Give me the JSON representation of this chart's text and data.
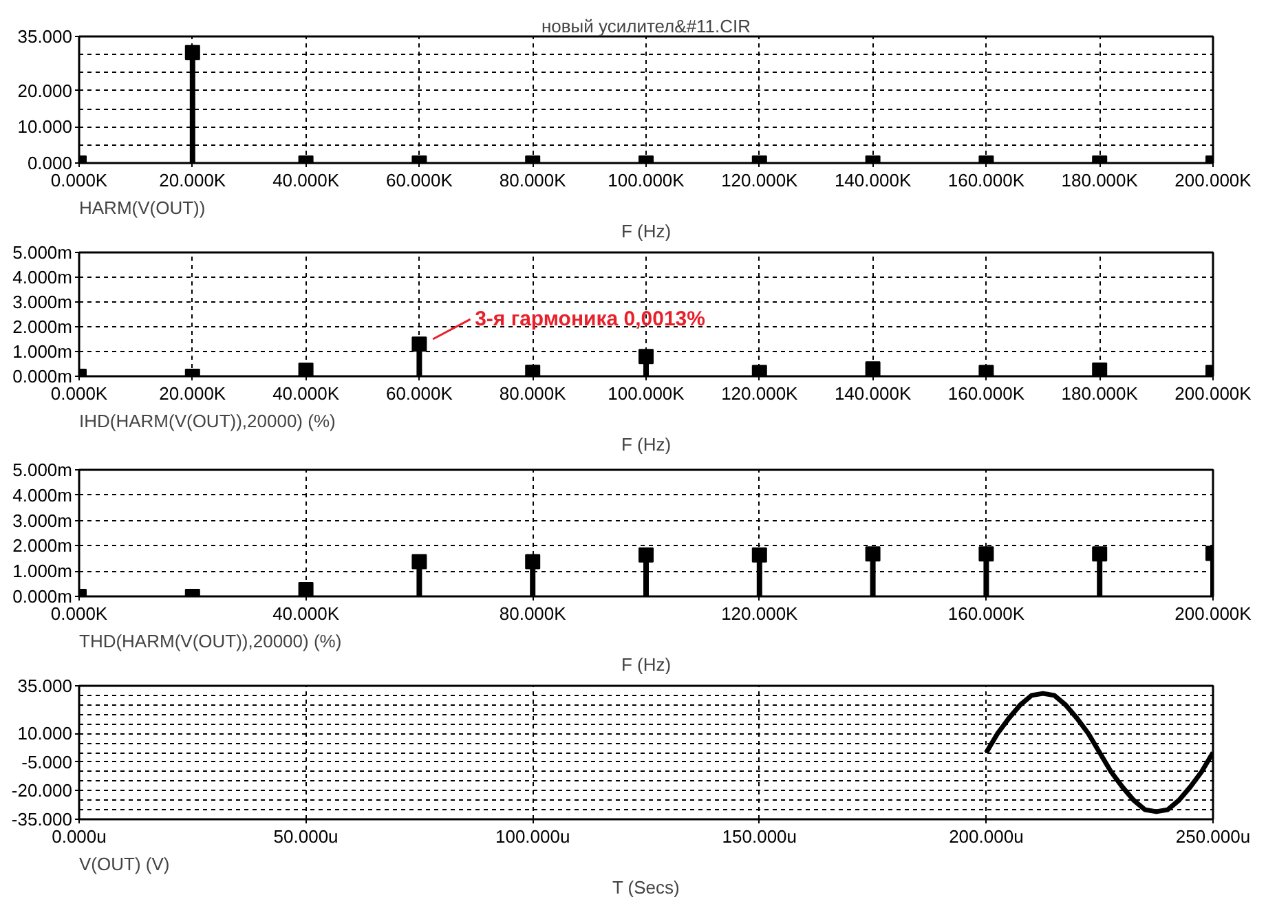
{
  "chart_data": [
    {
      "type": "lollipop",
      "title": "новый усилител&#11.CIR",
      "xlabel": "F (Hz)",
      "annotations": [
        "HARM(V(OUT))"
      ],
      "marker": "square",
      "grid": true,
      "x": [
        0,
        20,
        40,
        60,
        80,
        100,
        120,
        140,
        160,
        180,
        200
      ],
      "series": [
        {
          "color": "#000000",
          "values": [
            0,
            30.6,
            0,
            0,
            0,
            0,
            0,
            0,
            0,
            0,
            0
          ]
        }
      ],
      "xlim": [
        0,
        200
      ],
      "xticks": [
        {
          "value": 0,
          "label": "0.000K"
        },
        {
          "value": 20,
          "label": "20.000K"
        },
        {
          "value": 40,
          "label": "40.000K"
        },
        {
          "value": 60,
          "label": "60.000K"
        },
        {
          "value": 80,
          "label": "80.000K"
        },
        {
          "value": 100,
          "label": "100.000K"
        },
        {
          "value": 120,
          "label": "120.000K"
        },
        {
          "value": 140,
          "label": "140.000K"
        },
        {
          "value": 160,
          "label": "160.000K"
        },
        {
          "value": 180,
          "label": "180.000K"
        },
        {
          "value": 200,
          "label": "200.000K"
        }
      ],
      "ylim": [
        0,
        35
      ],
      "yticks": [
        {
          "value": 0,
          "label": "0.000"
        },
        {
          "value": 5,
          "label": null
        },
        {
          "value": 10,
          "label": "10.000"
        },
        {
          "value": 15,
          "label": null
        },
        {
          "value": 20,
          "label": "20.000"
        },
        {
          "value": 25,
          "label": null
        },
        {
          "value": 30,
          "label": null
        },
        {
          "value": 35,
          "label": "35.000"
        }
      ]
    },
    {
      "type": "lollipop",
      "xlabel": "F (Hz)",
      "marker": "square",
      "grid": true,
      "x": [
        0,
        20,
        40,
        60,
        80,
        100,
        120,
        140,
        160,
        180,
        200
      ],
      "series": [
        {
          "color": "#000000",
          "values": [
            0,
            0,
            0.24,
            1.3,
            0.16,
            0.8,
            0.15,
            0.3,
            0.15,
            0.25,
            0.15
          ]
        }
      ],
      "annotations": [
        {
          "text": "3-я гармоника 0,0013%",
          "x": 60,
          "y": 1.3
        },
        "IHD(HARM(V(OUT)),20000) (%)"
      ],
      "xlim": [
        0,
        200
      ],
      "xticks": [
        {
          "value": 0,
          "label": "0.000K"
        },
        {
          "value": 20,
          "label": "20.000K"
        },
        {
          "value": 40,
          "label": "40.000K"
        },
        {
          "value": 60,
          "label": "60.000K"
        },
        {
          "value": 80,
          "label": "80.000K"
        },
        {
          "value": 100,
          "label": "100.000K"
        },
        {
          "value": 120,
          "label": "120.000K"
        },
        {
          "value": 140,
          "label": "140.000K"
        },
        {
          "value": 160,
          "label": "160.000K"
        },
        {
          "value": 180,
          "label": "180.000K"
        },
        {
          "value": 200,
          "label": "200.000K"
        }
      ],
      "ylim": [
        0,
        5
      ],
      "yticks": [
        {
          "value": 0,
          "label": "0.000m"
        },
        {
          "value": 1,
          "label": "1.000m"
        },
        {
          "value": 2,
          "label": "2.000m"
        },
        {
          "value": 3,
          "label": "3.000m"
        },
        {
          "value": 4,
          "label": "4.000m"
        },
        {
          "value": 5,
          "label": "5.000m"
        }
      ]
    },
    {
      "type": "lollipop",
      "xlabel": "F (Hz)",
      "annotations": [
        "THD(HARM(V(OUT)),20000) (%)"
      ],
      "marker": "square",
      "grid": true,
      "x": [
        0,
        20,
        40,
        60,
        80,
        100,
        120,
        140,
        160,
        180,
        200
      ],
      "series": [
        {
          "color": "#000000",
          "values": [
            0,
            0,
            0.27,
            1.37,
            1.37,
            1.64,
            1.64,
            1.68,
            1.68,
            1.68,
            1.7
          ]
        }
      ],
      "xlim": [
        0,
        200
      ],
      "xticks": [
        {
          "value": 0,
          "label": "0.000K"
        },
        {
          "value": 40,
          "label": "40.000K"
        },
        {
          "value": 80,
          "label": "80.000K"
        },
        {
          "value": 120,
          "label": "120.000K"
        },
        {
          "value": 160,
          "label": "160.000K"
        },
        {
          "value": 200,
          "label": "200.000K"
        }
      ],
      "ylim": [
        0,
        5
      ],
      "yticks": [
        {
          "value": 0,
          "label": "0.000m"
        },
        {
          "value": 1,
          "label": "1.000m"
        },
        {
          "value": 2,
          "label": "2.000m"
        },
        {
          "value": 3,
          "label": "3.000m"
        },
        {
          "value": 4,
          "label": "4.000m"
        },
        {
          "value": 5,
          "label": "5.000m"
        }
      ]
    },
    {
      "type": "line",
      "xlabel": "T (Secs)",
      "annotations": [
        "V(OUT) (V)"
      ],
      "grid": true,
      "x": [
        200,
        202.5,
        205,
        207.5,
        210,
        212.5,
        215,
        217.5,
        220,
        222.5,
        225,
        227.5,
        230,
        232.5,
        235,
        237.5,
        240,
        242.5,
        245,
        247.5,
        250
      ],
      "series": [
        {
          "color": "#000000",
          "values": [
            0,
            10,
            18,
            25,
            30,
            31,
            30,
            25,
            18,
            10,
            0,
            -10,
            -18,
            -25,
            -30,
            -31,
            -30,
            -25,
            -18,
            -10,
            0
          ]
        }
      ],
      "xlim": [
        0,
        250
      ],
      "xticks": [
        {
          "value": 0,
          "label": "0.000u"
        },
        {
          "value": 50,
          "label": "50.000u"
        },
        {
          "value": 100,
          "label": "100.000u"
        },
        {
          "value": 150,
          "label": "150.000u"
        },
        {
          "value": 200,
          "label": "200.000u"
        },
        {
          "value": 250,
          "label": "250.000u"
        }
      ],
      "ylim": [
        -35,
        35
      ],
      "yticks": [
        {
          "value": -35,
          "label": "-35.000"
        },
        {
          "value": -30,
          "label": null
        },
        {
          "value": -25,
          "label": null
        },
        {
          "value": -20,
          "label": "-20.000"
        },
        {
          "value": -15,
          "label": null
        },
        {
          "value": -10,
          "label": null
        },
        {
          "value": -5,
          "label": "-5.000"
        },
        {
          "value": 0,
          "label": null
        },
        {
          "value": 5,
          "label": null
        },
        {
          "value": 10,
          "label": "10.000"
        },
        {
          "value": 15,
          "label": null
        },
        {
          "value": 20,
          "label": null
        },
        {
          "value": 25,
          "label": null
        },
        {
          "value": 30,
          "label": null
        },
        {
          "value": 35,
          "label": "35.000"
        }
      ]
    }
  ]
}
